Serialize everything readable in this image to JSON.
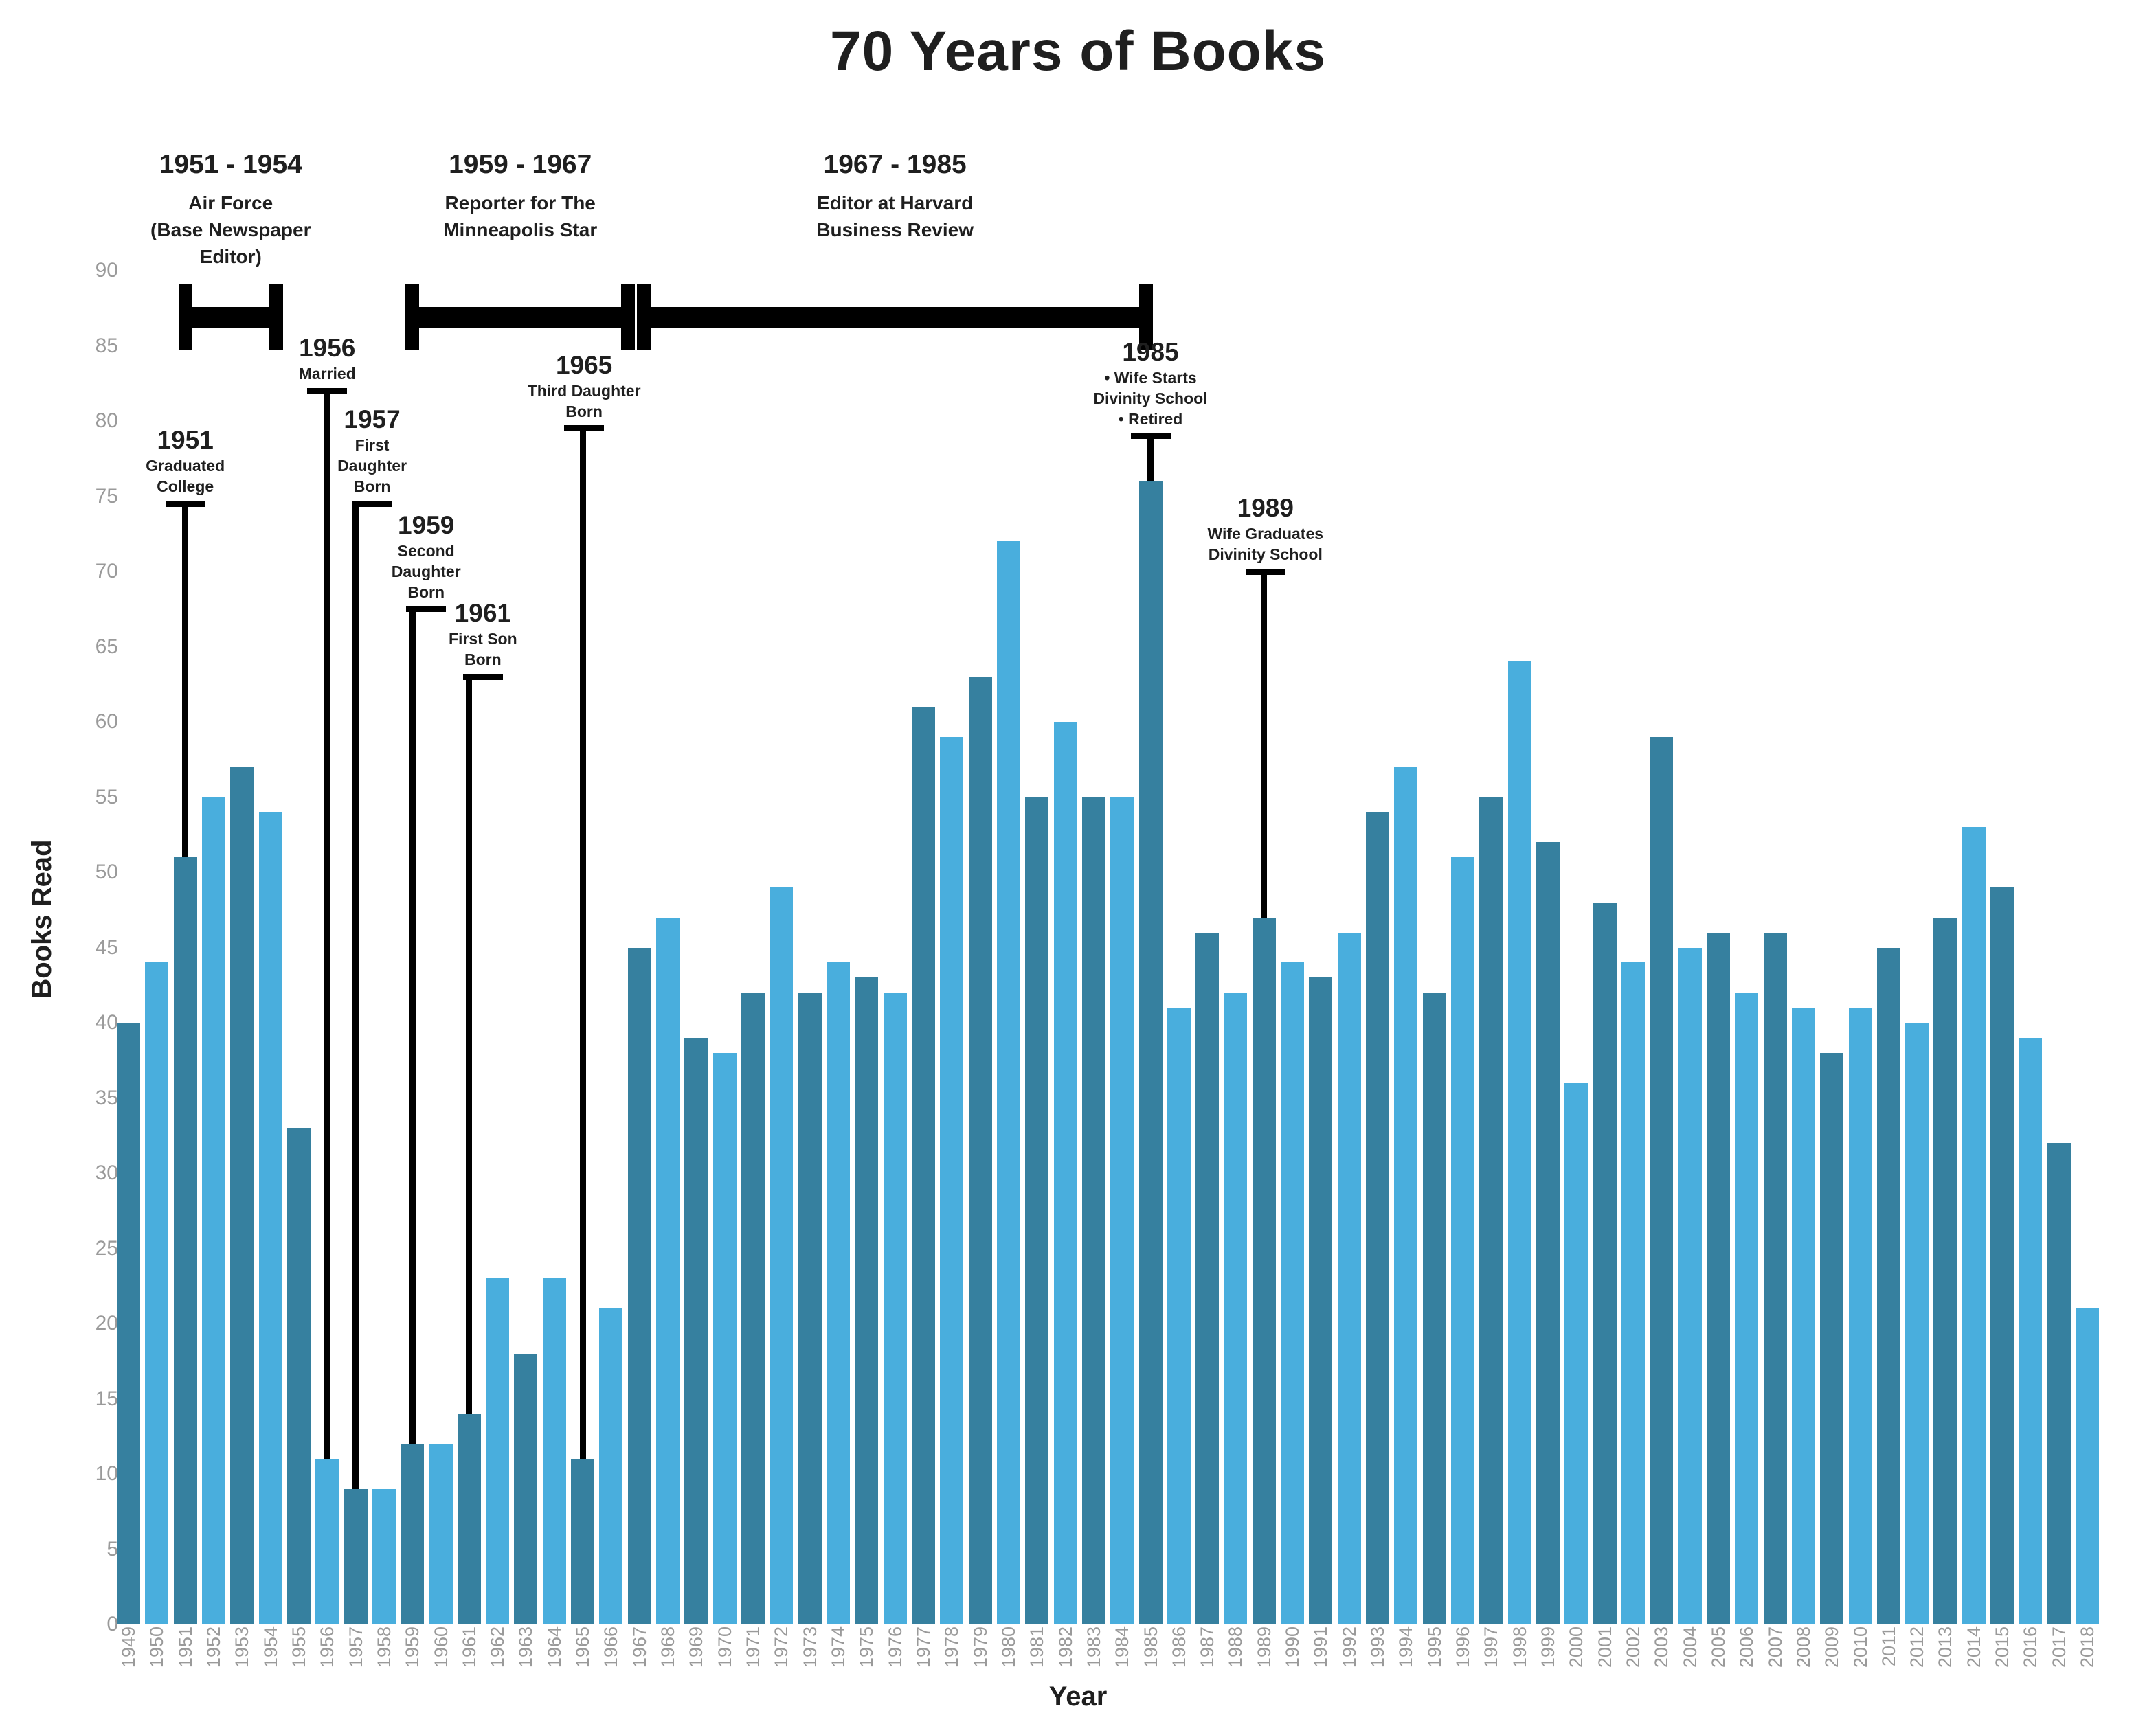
{
  "title": "70 Years of Books",
  "colors": {
    "bar_dark": "#36809F",
    "bar_light": "#49AEDD",
    "annotation": "#000000",
    "tick_label": "#9a9a9a",
    "text": "#1f1f1f",
    "background": "#ffffff"
  },
  "chart_data": {
    "type": "bar",
    "title": "70 Years of Books",
    "xlabel": "Year",
    "ylabel": "Books Read",
    "ylim": [
      0,
      90
    ],
    "yticks": [
      0,
      5,
      10,
      15,
      20,
      25,
      30,
      35,
      40,
      45,
      50,
      55,
      60,
      65,
      70,
      75,
      80,
      85,
      90
    ],
    "grid": false,
    "legend": "none",
    "bar_color_alternation": [
      "#36809F",
      "#49AEDD"
    ],
    "x": [
      1949,
      1950,
      1951,
      1952,
      1953,
      1954,
      1955,
      1956,
      1957,
      1958,
      1959,
      1960,
      1961,
      1962,
      1963,
      1964,
      1965,
      1966,
      1967,
      1968,
      1969,
      1970,
      1971,
      1972,
      1973,
      1974,
      1975,
      1976,
      1977,
      1978,
      1979,
      1980,
      1981,
      1982,
      1983,
      1984,
      1985,
      1986,
      1987,
      1988,
      1989,
      1990,
      1991,
      1992,
      1993,
      1994,
      1995,
      1996,
      1997,
      1998,
      1999,
      2000,
      2001,
      2002,
      2003,
      2004,
      2005,
      2006,
      2007,
      2008,
      2009,
      2010,
      2011,
      2012,
      2013,
      2014,
      2015,
      2016,
      2017,
      2018
    ],
    "values": [
      40,
      44,
      51,
      55,
      57,
      54,
      33,
      11,
      9,
      9,
      12,
      12,
      14,
      23,
      18,
      23,
      11,
      21,
      45,
      47,
      39,
      38,
      42,
      49,
      42,
      44,
      43,
      42,
      61,
      59,
      63,
      72,
      55,
      60,
      55,
      55,
      76,
      41,
      46,
      42,
      47,
      44,
      43,
      46,
      54,
      57,
      42,
      51,
      55,
      64,
      52,
      36,
      48,
      44,
      59,
      45,
      46,
      42,
      46,
      41,
      38,
      41,
      45,
      40,
      47,
      53,
      49,
      39,
      32,
      21
    ]
  },
  "periods": [
    {
      "label": "1951 - 1954",
      "desc_lines": [
        "Air Force",
        "(Base Newspaper",
        "Editor)"
      ],
      "start": 1951,
      "end": 1954.2
    },
    {
      "label": "1959 - 1967",
      "desc_lines": [
        "Reporter for The",
        "Minneapolis Star"
      ],
      "start": 1959,
      "end": 1966.6
    },
    {
      "label": "1967 - 1985",
      "desc_lines": [
        "Editor at Harvard",
        "Business Review"
      ],
      "start": 1967.15,
      "end": 1984.85
    }
  ],
  "events": [
    {
      "year_label": "1951",
      "desc_lines": [
        "Graduated",
        "College"
      ],
      "year": 1951,
      "cap_value": 74.5,
      "end_value": 51,
      "dx": 0
    },
    {
      "year_label": "1956",
      "desc_lines": [
        "Married"
      ],
      "year": 1956,
      "cap_value": 82,
      "end_value": 11,
      "dx": 0
    },
    {
      "year_label": "1957",
      "desc_lines": [
        "First",
        "Daughter",
        "Born"
      ],
      "year": 1957,
      "cap_value": 74.5,
      "end_value": 9,
      "dx": 24
    },
    {
      "year_label": "1959",
      "desc_lines": [
        "Second",
        "Daughter",
        "Born"
      ],
      "year": 1959,
      "cap_value": 67.5,
      "end_value": 12,
      "dx": 20
    },
    {
      "year_label": "1961",
      "desc_lines": [
        "First Son",
        "Born"
      ],
      "year": 1961,
      "cap_value": 63,
      "end_value": 14,
      "dx": 20
    },
    {
      "year_label": "1965",
      "desc_lines": [
        "Third Daughter",
        "Born"
      ],
      "year": 1965,
      "cap_value": 79.5,
      "end_value": 11,
      "dx": 2
    },
    {
      "year_label": "1985",
      "desc_lines": [
        "• Wife Starts",
        "Divinity School",
        "• Retired"
      ],
      "year": 1985,
      "cap_value": 79,
      "end_value": 76,
      "dx": 0
    },
    {
      "year_label": "1989",
      "desc_lines": [
        "Wife Graduates",
        "Divinity School"
      ],
      "year": 1989,
      "cap_value": 70,
      "end_value": 47,
      "dx": 2
    }
  ]
}
